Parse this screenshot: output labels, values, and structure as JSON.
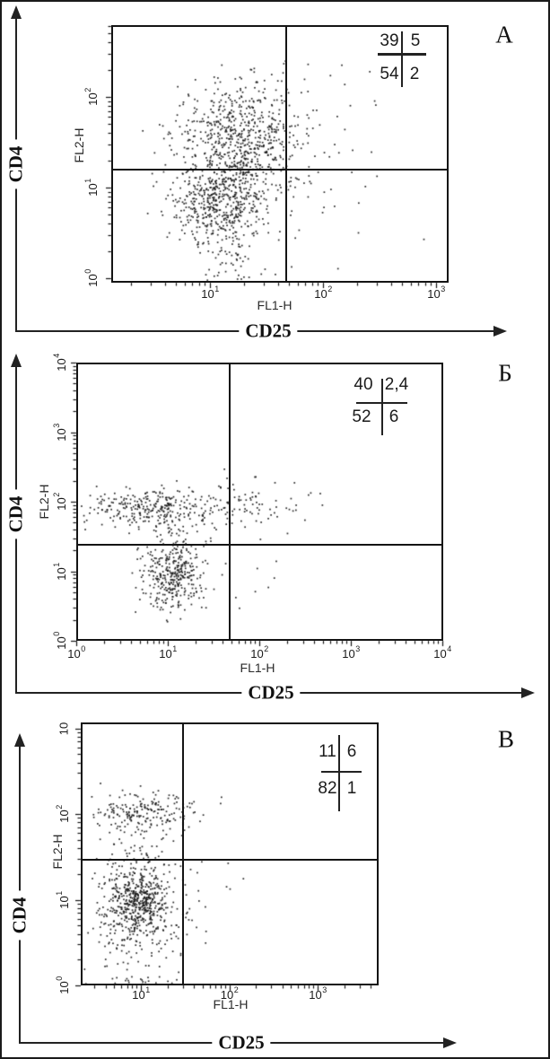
{
  "figure": {
    "background": "#ffffff",
    "border_color": "#1a1a1a",
    "dot_color": "#181818"
  },
  "chart_data": [
    {
      "panel_label": "А",
      "type": "scatter",
      "x_scale": "log",
      "y_scale": "log",
      "x_axis_inner": "FL1-H",
      "y_axis_inner": "FL2-H",
      "x_axis_outer": "CD25",
      "y_axis_outer": "CD4",
      "x_ticks": [
        {
          "base": "10",
          "sup": "1",
          "log": 1
        },
        {
          "base": "10",
          "sup": "2",
          "log": 2
        },
        {
          "base": "10",
          "sup": "3",
          "log": 3
        }
      ],
      "y_ticks": [
        {
          "base": "10",
          "sup": "0",
          "log": 0
        },
        {
          "base": "10",
          "sup": "1",
          "log": 1
        },
        {
          "base": "10",
          "sup": "2",
          "log": 2
        }
      ],
      "x_range_log": [
        0.14,
        3.1
      ],
      "y_range_log": [
        -0.04,
        2.78
      ],
      "quadrant_gate_log": {
        "x": 1.675,
        "y": 1.2
      },
      "quadrant_stats": {
        "upper_left": "39",
        "upper_right": "5",
        "lower_left": "54",
        "lower_right": "2"
      },
      "clusters": [
        {
          "n": 500,
          "cx": 1.25,
          "cy": 1.62,
          "sx": 0.28,
          "sy": 0.27
        },
        {
          "n": 450,
          "cx": 1.08,
          "cy": 0.82,
          "sx": 0.2,
          "sy": 0.22
        },
        {
          "n": 150,
          "cx": 1.3,
          "cy": 1.22,
          "sx": 0.22,
          "sy": 0.18
        },
        {
          "n": 130,
          "cx": 1.55,
          "cy": 1.35,
          "sx": 0.55,
          "sy": 0.6
        },
        {
          "n": 50,
          "cx": 1.15,
          "cy": 0.28,
          "sx": 0.13,
          "sy": 0.22
        }
      ]
    },
    {
      "panel_label": "Б",
      "type": "scatter",
      "x_scale": "log",
      "y_scale": "log",
      "x_axis_inner": "FL1-H",
      "y_axis_inner": "FL2-H",
      "x_axis_outer": "CD25",
      "y_axis_outer": "CD4",
      "x_ticks": [
        {
          "base": "10",
          "sup": "0",
          "log": 0
        },
        {
          "base": "10",
          "sup": "1",
          "log": 1
        },
        {
          "base": "10",
          "sup": "2",
          "log": 2
        },
        {
          "base": "10",
          "sup": "3",
          "log": 3
        },
        {
          "base": "10",
          "sup": "4",
          "log": 4
        }
      ],
      "y_ticks": [
        {
          "base": "10",
          "sup": "0",
          "log": 0
        },
        {
          "base": "10",
          "sup": "1",
          "log": 1
        },
        {
          "base": "10",
          "sup": "2",
          "log": 2
        },
        {
          "base": "10",
          "sup": "3",
          "log": 3
        },
        {
          "base": "10",
          "sup": "4",
          "log": 4
        }
      ],
      "x_range_log": [
        0,
        4
      ],
      "y_range_log": [
        0,
        4
      ],
      "quadrant_gate_log": {
        "x": 1.676,
        "y": 1.38
      },
      "quadrant_stats": {
        "upper_left": "40",
        "upper_right": "2,4",
        "lower_left": "52",
        "lower_right": "6"
      },
      "clusters": [
        {
          "n": 300,
          "cx": 0.85,
          "cy": 1.93,
          "sx": 0.42,
          "sy": 0.13
        },
        {
          "n": 70,
          "cx": 1.95,
          "cy": 1.95,
          "sx": 0.35,
          "sy": 0.17
        },
        {
          "n": 330,
          "cx": 1.05,
          "cy": 0.95,
          "sx": 0.16,
          "sy": 0.24
        },
        {
          "n": 55,
          "cx": 1.1,
          "cy": 1.48,
          "sx": 0.25,
          "sy": 0.18
        },
        {
          "n": 10,
          "cx": 1.9,
          "cy": 1.05,
          "sx": 0.25,
          "sy": 0.35
        }
      ]
    },
    {
      "panel_label": "В",
      "type": "scatter",
      "x_scale": "log",
      "y_scale": "log",
      "x_axis_inner": "FL1-H",
      "y_axis_inner": "FL2-H",
      "x_axis_outer": "CD25",
      "y_axis_outer": "CD4",
      "x_ticks": [
        {
          "base": "10",
          "sup": "1",
          "log": 1
        },
        {
          "base": "10",
          "sup": "2",
          "log": 2
        },
        {
          "base": "10",
          "sup": "3",
          "log": 3
        }
      ],
      "y_ticks": [
        {
          "base": "10",
          "sup": "0",
          "log": 0
        },
        {
          "base": "10",
          "sup": "1",
          "log": 1
        },
        {
          "base": "10",
          "sup": "2",
          "log": 2
        },
        {
          "base": "10",
          "sup": "",
          "log": 3
        }
      ],
      "x_range_log": [
        0.34,
        3.66
      ],
      "y_range_log": [
        0,
        3.06
      ],
      "quadrant_gate_log": {
        "x": 1.477,
        "y": 1.466
      },
      "quadrant_stats": {
        "upper_left": "11",
        "upper_right": "6",
        "lower_left": "82",
        "lower_right": "1"
      },
      "clusters": [
        {
          "n": 200,
          "cx": 1.05,
          "cy": 2.03,
          "sx": 0.36,
          "sy": 0.11
        },
        {
          "n": 400,
          "cx": 0.95,
          "cy": 1.0,
          "sx": 0.17,
          "sy": 0.18
        },
        {
          "n": 260,
          "cx": 0.95,
          "cy": 0.82,
          "sx": 0.3,
          "sy": 0.33
        },
        {
          "n": 45,
          "cx": 1.02,
          "cy": 1.6,
          "sx": 0.28,
          "sy": 0.14
        },
        {
          "n": 40,
          "cx": 0.9,
          "cy": 0.04,
          "sx": 0.3,
          "sy": 0.04
        },
        {
          "n": 12,
          "cx": 1.65,
          "cy": 0.95,
          "sx": 0.22,
          "sy": 0.3
        }
      ]
    }
  ]
}
